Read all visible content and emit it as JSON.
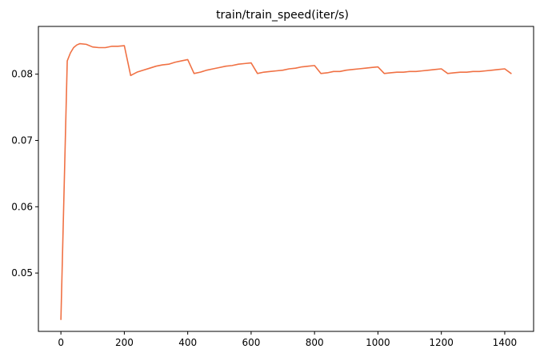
{
  "chart_data": {
    "type": "line",
    "title": "train/train_speed(iter/s)",
    "xlabel": "",
    "ylabel": "",
    "xlim": [
      -71,
      1491
    ],
    "ylim": [
      0.0412,
      0.0872
    ],
    "grid": false,
    "legend": "none",
    "xticks": [
      0,
      200,
      400,
      600,
      800,
      1000,
      1200,
      1400
    ],
    "xtick_labels": [
      "0",
      "200",
      "400",
      "600",
      "800",
      "1000",
      "1200",
      "1400"
    ],
    "yticks": [
      0.05,
      0.06,
      0.07,
      0.08
    ],
    "ytick_labels": [
      "0.05",
      "0.06",
      "0.07",
      "0.08"
    ],
    "series": [
      {
        "color": "#f07144",
        "x": [
          0,
          20,
          30,
          40,
          50,
          60,
          80,
          100,
          120,
          140,
          160,
          180,
          200,
          220,
          240,
          260,
          280,
          300,
          320,
          340,
          360,
          380,
          400,
          420,
          440,
          460,
          480,
          500,
          520,
          540,
          560,
          580,
          600,
          620,
          640,
          660,
          680,
          700,
          720,
          740,
          760,
          780,
          800,
          820,
          840,
          860,
          880,
          900,
          920,
          940,
          960,
          980,
          1000,
          1020,
          1040,
          1060,
          1080,
          1100,
          1120,
          1140,
          1160,
          1180,
          1200,
          1220,
          1240,
          1260,
          1280,
          1300,
          1320,
          1340,
          1360,
          1380,
          1400,
          1420
        ],
        "y": [
          0.043,
          0.082,
          0.0832,
          0.084,
          0.0844,
          0.0846,
          0.0845,
          0.0841,
          0.084,
          0.084,
          0.0842,
          0.0842,
          0.0843,
          0.0798,
          0.0803,
          0.0806,
          0.0809,
          0.0812,
          0.0814,
          0.0815,
          0.0818,
          0.082,
          0.0822,
          0.0801,
          0.0803,
          0.0806,
          0.0808,
          0.081,
          0.0812,
          0.0813,
          0.0815,
          0.0816,
          0.0817,
          0.0801,
          0.0803,
          0.0804,
          0.0805,
          0.0806,
          0.0808,
          0.0809,
          0.0811,
          0.0812,
          0.0813,
          0.0801,
          0.0802,
          0.0804,
          0.0804,
          0.0806,
          0.0807,
          0.0808,
          0.0809,
          0.081,
          0.0811,
          0.0801,
          0.0802,
          0.0803,
          0.0803,
          0.0804,
          0.0804,
          0.0805,
          0.0806,
          0.0807,
          0.0808,
          0.0801,
          0.0802,
          0.0803,
          0.0803,
          0.0804,
          0.0804,
          0.0805,
          0.0806,
          0.0807,
          0.0808,
          0.0801
        ]
      }
    ]
  }
}
